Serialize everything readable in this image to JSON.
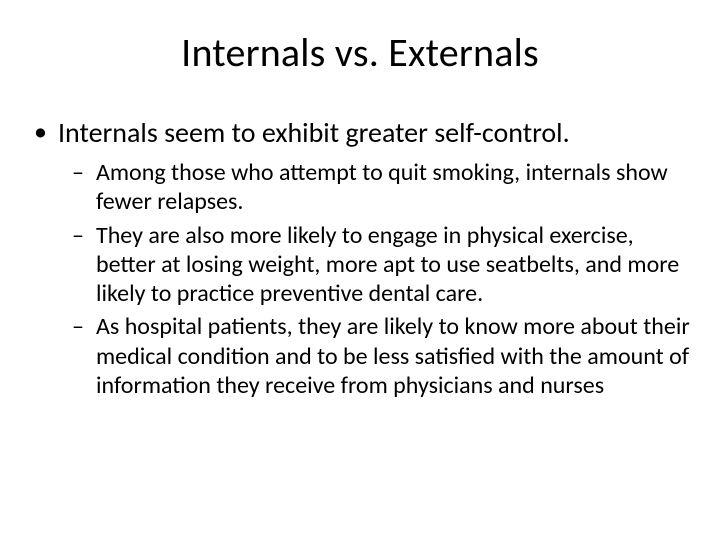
{
  "slide": {
    "title": "Internals vs. Externals",
    "bullets": {
      "level1": [
        {
          "text": "Internals seem to exhibit greater self-control.",
          "children": [
            "Among those who attempt to quit smoking, internals show fewer relapses.",
            "They are also more likely to engage in physical exercise, better at losing weight, more apt to use seatbelts, and more likely to practice preventive dental care.",
            "As hospital patients, they are likely to know more about their medical condition and to be less satisfied with the amount of information they receive from physicians and nurses"
          ]
        }
      ]
    }
  },
  "style": {
    "background_color": "#ffffff",
    "text_color": "#000000",
    "title_fontsize": 40,
    "level1_fontsize": 28,
    "level2_fontsize": 24,
    "font_family": "Calibri",
    "level1_bullet": "•",
    "level2_bullet": "–"
  }
}
